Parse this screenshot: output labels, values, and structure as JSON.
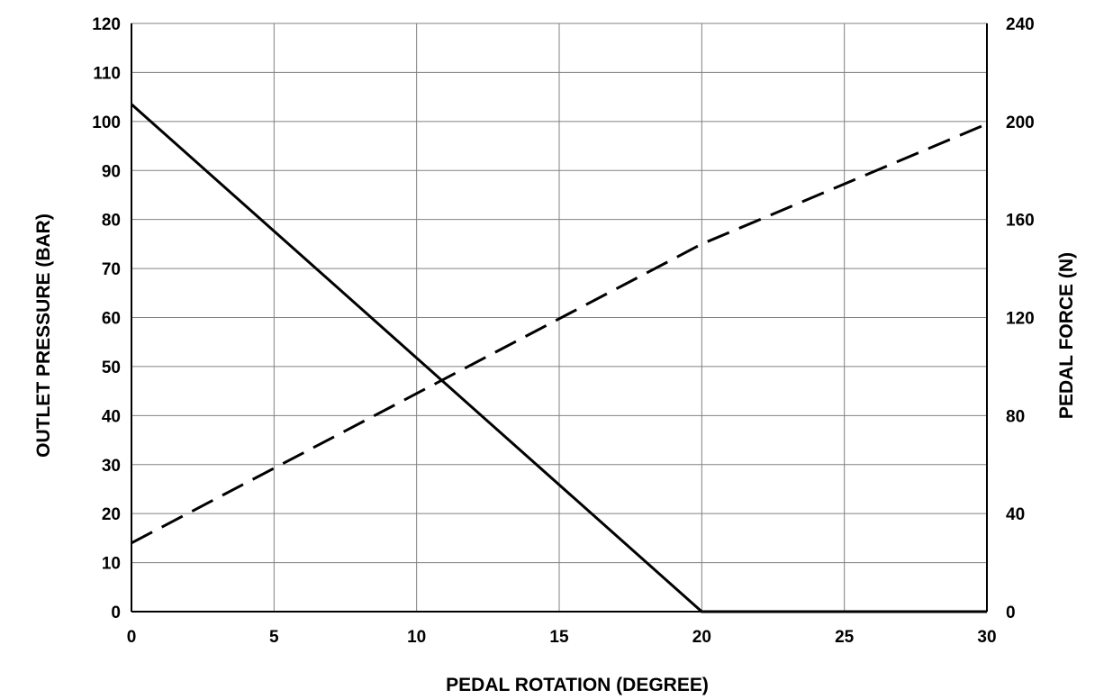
{
  "chart_data": {
    "type": "line",
    "xlabel": "PEDAL ROTATION (DEGREE)",
    "ylabel": "OUTLET PRESSURE (BAR)",
    "y2label": "PEDAL FORCE (N)",
    "xlim": [
      0,
      30
    ],
    "ylim": [
      0,
      120
    ],
    "y2lim": [
      0,
      240
    ],
    "x_ticks": [
      0,
      5,
      10,
      15,
      20,
      25,
      30
    ],
    "y_ticks": [
      0,
      10,
      20,
      30,
      40,
      50,
      60,
      70,
      80,
      90,
      100,
      110,
      120
    ],
    "y2_ticks": [
      0,
      40,
      80,
      120,
      160,
      200,
      240
    ],
    "grid": true,
    "series": [
      {
        "axis": "left",
        "style": "solid",
        "points": [
          [
            0,
            103.5
          ],
          [
            20,
            0
          ],
          [
            30,
            0
          ]
        ]
      },
      {
        "axis": "right",
        "style": "dashed",
        "points": [
          [
            0,
            28
          ],
          [
            20,
            150
          ],
          [
            30,
            199
          ]
        ]
      }
    ]
  }
}
